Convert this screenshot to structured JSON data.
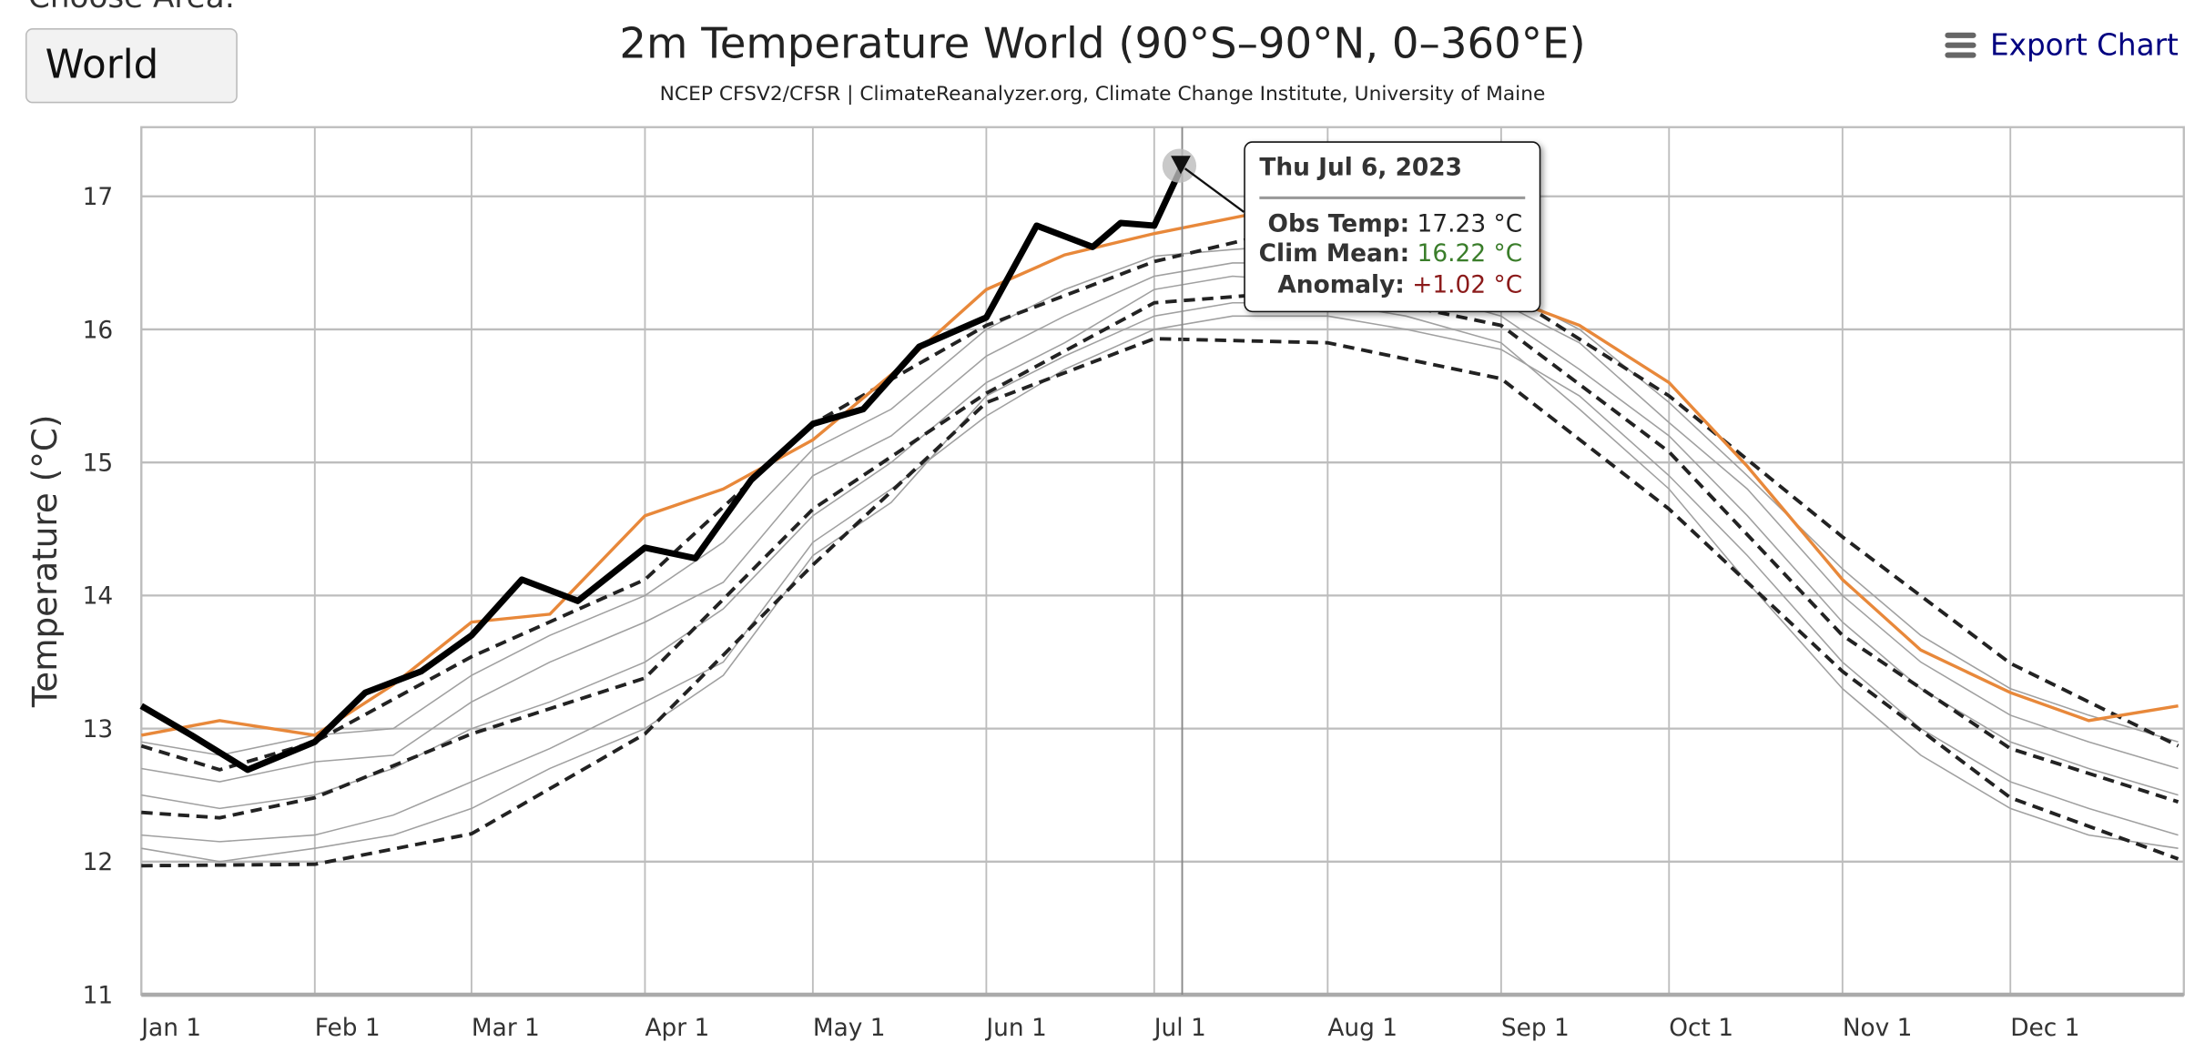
{
  "area_selector": {
    "label": "Choose Area:",
    "value": "World"
  },
  "export": {
    "label": "Export Chart",
    "icon": "hamburger-menu-icon",
    "color": "#000080"
  },
  "tooltip": {
    "date": "Thu Jul 6, 2023",
    "obs_label": "Obs Temp:",
    "obs_value": "17.23 °C",
    "clim_label": "Clim Mean:",
    "clim_value": "16.22 °C",
    "clim_color": "#3a7d2a",
    "anom_label": "Anomaly:",
    "anom_value": "+1.02 °C",
    "anom_color": "#8b1a1a"
  },
  "chart_data": {
    "type": "line",
    "title": "2m Temperature World (90°S–90°N, 0–360°E)",
    "subtitle": "NCEP CFSV2/CFSR | ClimateReanalyzer.org, Climate Change Institute, University of Maine",
    "ylabel": "Temperature (°C)",
    "xlabel": "",
    "ylim": [
      11,
      17.52
    ],
    "yticks": [
      "11",
      "12",
      "13",
      "14",
      "15",
      "16",
      "17"
    ],
    "xticks": [
      {
        "date": "01-01",
        "label": "Jan 1"
      },
      {
        "date": "02-01",
        "label": "Feb 1"
      },
      {
        "date": "03-01",
        "label": "Mar 1"
      },
      {
        "date": "04-01",
        "label": "Apr 1"
      },
      {
        "date": "05-01",
        "label": "May 1"
      },
      {
        "date": "06-01",
        "label": "Jun 1"
      },
      {
        "date": "07-01",
        "label": "Jul 1"
      },
      {
        "date": "08-01",
        "label": "Aug 1"
      },
      {
        "date": "09-01",
        "label": "Sep 1"
      },
      {
        "date": "10-01",
        "label": "Oct 1"
      },
      {
        "date": "11-01",
        "label": "Nov 1"
      },
      {
        "date": "12-01",
        "label": "Dec 1"
      }
    ],
    "grid": true,
    "legend": "none",
    "highlight": {
      "date": "07-06",
      "value": 17.23
    },
    "colors": {
      "current": "#000000",
      "orange": "#e8883a",
      "gray": "#a0a0a0",
      "dashed": "#222222",
      "grid": "#bdbdbd"
    },
    "series_gray": [
      {
        "x": [
          "01-01",
          "01-15",
          "02-01",
          "02-15",
          "03-01",
          "03-15",
          "04-01",
          "04-15",
          "05-01",
          "05-15",
          "06-01",
          "06-15",
          "07-01",
          "07-15",
          "08-01",
          "08-15",
          "09-01",
          "09-15",
          "10-01",
          "10-15",
          "11-01",
          "11-15",
          "12-01",
          "12-15",
          "12-31"
        ],
        "y": [
          12.7,
          12.6,
          12.75,
          12.8,
          13.2,
          13.5,
          13.8,
          14.1,
          14.9,
          15.2,
          15.8,
          16.1,
          16.4,
          16.5,
          16.5,
          16.4,
          16.2,
          15.9,
          15.3,
          14.8,
          14.0,
          13.5,
          13.1,
          12.9,
          12.7
        ]
      },
      {
        "x": [
          "01-01",
          "01-15",
          "02-01",
          "02-15",
          "03-01",
          "03-15",
          "04-01",
          "04-15",
          "05-01",
          "05-15",
          "06-01",
          "06-15",
          "07-01",
          "07-15",
          "08-01",
          "08-15",
          "09-01",
          "09-15",
          "10-01",
          "10-15",
          "11-01",
          "11-15",
          "12-01",
          "12-15",
          "12-31"
        ],
        "y": [
          12.5,
          12.4,
          12.5,
          12.7,
          13.0,
          13.2,
          13.5,
          13.9,
          14.6,
          15.0,
          15.6,
          15.9,
          16.3,
          16.4,
          16.35,
          16.3,
          16.1,
          15.7,
          15.2,
          14.6,
          13.8,
          13.3,
          12.9,
          12.7,
          12.5
        ]
      },
      {
        "x": [
          "01-01",
          "01-15",
          "02-01",
          "02-15",
          "03-01",
          "03-15",
          "04-01",
          "04-15",
          "05-01",
          "05-15",
          "06-01",
          "06-15",
          "07-01",
          "07-15",
          "08-01",
          "08-15",
          "09-01",
          "09-15",
          "10-01",
          "10-15",
          "11-01",
          "11-15",
          "12-01",
          "12-15",
          "12-31"
        ],
        "y": [
          12.2,
          12.15,
          12.2,
          12.35,
          12.6,
          12.85,
          13.2,
          13.5,
          14.4,
          14.8,
          15.35,
          15.7,
          16.0,
          16.1,
          16.1,
          16.0,
          15.85,
          15.5,
          14.9,
          14.3,
          13.5,
          13.0,
          12.6,
          12.4,
          12.2
        ]
      },
      {
        "x": [
          "01-01",
          "01-15",
          "02-01",
          "02-15",
          "03-01",
          "03-15",
          "04-01",
          "04-15",
          "05-01",
          "05-15",
          "06-01",
          "06-15",
          "07-01",
          "07-15",
          "08-01",
          "08-15",
          "09-01",
          "09-15",
          "10-01",
          "10-15",
          "11-01",
          "11-15",
          "12-01",
          "12-15",
          "12-31"
        ],
        "y": [
          12.9,
          12.8,
          12.95,
          13.0,
          13.4,
          13.7,
          14.0,
          14.4,
          15.1,
          15.4,
          16.0,
          16.3,
          16.55,
          16.6,
          16.65,
          16.55,
          16.3,
          16.0,
          15.45,
          14.9,
          14.2,
          13.7,
          13.3,
          13.1,
          12.9
        ]
      },
      {
        "x": [
          "01-01",
          "01-15",
          "02-01",
          "02-15",
          "03-01",
          "03-15",
          "04-01",
          "04-15",
          "05-01",
          "05-15",
          "06-01",
          "06-15",
          "07-01",
          "07-15",
          "08-01",
          "08-15",
          "09-01",
          "09-15",
          "10-01",
          "10-15",
          "11-01",
          "11-15",
          "12-01",
          "12-15",
          "12-31"
        ],
        "y": [
          12.1,
          12.0,
          12.1,
          12.2,
          12.4,
          12.7,
          13.0,
          13.4,
          14.3,
          14.7,
          15.5,
          15.8,
          16.1,
          16.2,
          16.2,
          16.1,
          15.9,
          15.4,
          14.8,
          14.1,
          13.3,
          12.8,
          12.4,
          12.2,
          12.1
        ]
      }
    ],
    "series_dashed": [
      {
        "x": [
          "01-01",
          "01-15",
          "02-01",
          "03-01",
          "04-01",
          "05-01",
          "06-01",
          "07-01",
          "07-20",
          "08-01",
          "09-01",
          "10-01",
          "11-01",
          "12-01",
          "12-31"
        ],
        "y": [
          12.87,
          12.69,
          12.9,
          13.54,
          14.12,
          15.29,
          16.03,
          16.51,
          16.7,
          16.7,
          16.3,
          15.5,
          14.44,
          13.49,
          12.87
        ]
      },
      {
        "x": [
          "01-01",
          "01-15",
          "02-01",
          "03-01",
          "04-01",
          "05-01",
          "06-01",
          "07-01",
          "08-01",
          "09-01",
          "10-01",
          "11-01",
          "12-01",
          "12-31"
        ],
        "y": [
          12.37,
          12.33,
          12.48,
          12.96,
          13.38,
          14.65,
          15.52,
          16.2,
          16.3,
          16.03,
          15.08,
          13.7,
          12.85,
          12.45
        ]
      },
      {
        "x": [
          "01-01",
          "02-01",
          "03-01",
          "04-01",
          "05-01",
          "06-01",
          "07-01",
          "08-01",
          "09-01",
          "10-01",
          "11-01",
          "12-01",
          "12-31"
        ],
        "y": [
          11.97,
          11.98,
          12.21,
          12.96,
          14.23,
          15.45,
          15.93,
          15.9,
          15.63,
          14.65,
          13.43,
          12.48,
          12.02
        ]
      }
    ],
    "series_orange": {
      "x": [
        "01-01",
        "01-15",
        "02-01",
        "02-15",
        "03-01",
        "03-15",
        "04-01",
        "04-15",
        "05-01",
        "05-15",
        "06-01",
        "06-15",
        "07-01",
        "07-20",
        "08-01",
        "08-15",
        "09-01",
        "09-15",
        "10-01",
        "10-15",
        "11-01",
        "11-15",
        "12-01",
        "12-15",
        "12-31"
      ],
      "y": [
        12.95,
        13.06,
        12.95,
        13.33,
        13.8,
        13.86,
        14.6,
        14.8,
        15.17,
        15.66,
        16.3,
        16.56,
        16.72,
        16.88,
        16.8,
        16.56,
        16.25,
        16.03,
        15.6,
        14.97,
        14.12,
        13.59,
        13.27,
        13.06,
        13.17
      ]
    },
    "series_current": {
      "name": "2023",
      "x": [
        "01-01",
        "01-10",
        "01-20",
        "02-01",
        "02-10",
        "02-20",
        "03-01",
        "03-10",
        "03-20",
        "04-01",
        "04-10",
        "04-20",
        "05-01",
        "05-10",
        "05-20",
        "06-01",
        "06-10",
        "06-20",
        "06-25",
        "07-01",
        "07-06"
      ],
      "y": [
        13.17,
        12.95,
        12.69,
        12.9,
        13.27,
        13.43,
        13.7,
        14.12,
        13.96,
        14.36,
        14.28,
        14.87,
        15.29,
        15.4,
        15.87,
        16.09,
        16.78,
        16.62,
        16.8,
        16.78,
        17.23
      ]
    }
  }
}
